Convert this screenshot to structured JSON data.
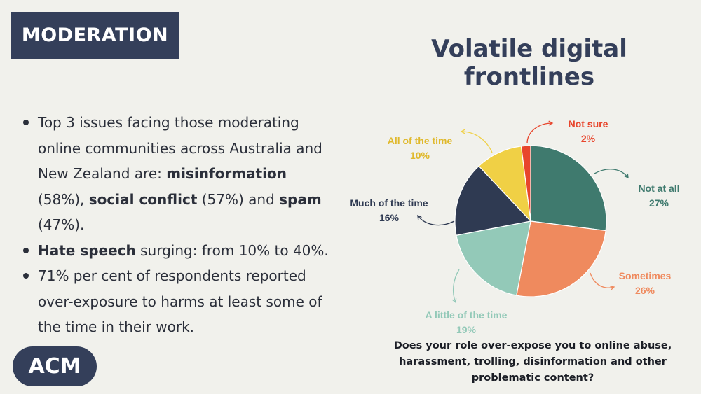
{
  "header": {
    "tag": "MODERATION",
    "title": "Volatile digital frontlines"
  },
  "bullets": [
    {
      "parts": [
        {
          "text": "Top 3 issues facing those moderating online communities across Australia and New Zealand are: ",
          "bold": false
        },
        {
          "text": "misinformation",
          "bold": true
        },
        {
          "text": " (58%), ",
          "bold": false
        },
        {
          "text": "social conflict",
          "bold": true
        },
        {
          "text": " (57%) and ",
          "bold": false
        },
        {
          "text": "spam",
          "bold": true
        },
        {
          "text": " (47%).",
          "bold": false
        }
      ]
    },
    {
      "parts": [
        {
          "text": "Hate speech",
          "bold": true
        },
        {
          "text": " surging: from 10% to 40%.",
          "bold": false
        }
      ]
    },
    {
      "parts": [
        {
          "text": "71% per cent of respondents reported over-exposure to harms at least some of the time in their work.",
          "bold": false
        }
      ]
    }
  ],
  "logo": "ACM",
  "chart_data": {
    "type": "pie",
    "title": "",
    "caption": "Does your role over-expose you to online abuse, harassment, trolling, disinformation  and other problematic content?",
    "legend": "none",
    "slices": [
      {
        "label": "Not at all",
        "value": 27,
        "value_label": "27%",
        "color": "#3f7a6e"
      },
      {
        "label": "Sometimes",
        "value": 26,
        "value_label": "26%",
        "color": "#ef8a5e"
      },
      {
        "label": "A little of the time",
        "value": 19,
        "value_label": "19%",
        "color": "#93c9b8"
      },
      {
        "label": "Much of the time",
        "value": 16,
        "value_label": "16%",
        "color": "#2f3a52"
      },
      {
        "label": "All of the time",
        "value": 10,
        "value_label": "10%",
        "color": "#f0d045"
      },
      {
        "label": "Not sure",
        "value": 2,
        "value_label": "2%",
        "color": "#e8452c"
      }
    ]
  }
}
